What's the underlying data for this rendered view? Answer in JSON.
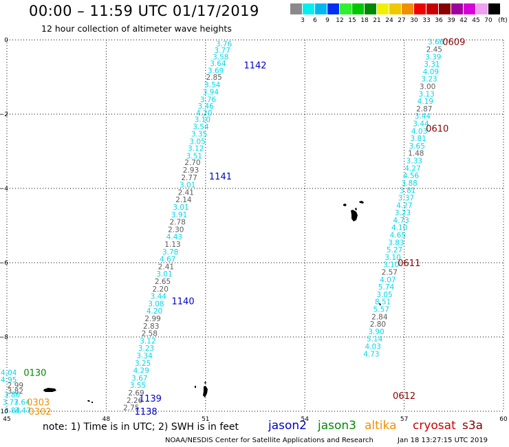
{
  "header": {
    "title": "00:00 – 11:59 UTC 01/17/2019",
    "subtitle": "12 hour collection of altimeter wave heights"
  },
  "legend": {
    "unit": "(ft)",
    "items": [
      {
        "label": "3",
        "color": "#8a8a8a"
      },
      {
        "label": "6",
        "color": "#00f0f0"
      },
      {
        "label": "9",
        "color": "#00b8f0"
      },
      {
        "label": "12",
        "color": "#0030f0"
      },
      {
        "label": "15",
        "color": "#30f030"
      },
      {
        "label": "18",
        "color": "#00c800"
      },
      {
        "label": "21",
        "color": "#008800"
      },
      {
        "label": "24",
        "color": "#f0f000"
      },
      {
        "label": "27",
        "color": "#f0c800"
      },
      {
        "label": "30",
        "color": "#f09000"
      },
      {
        "label": "33",
        "color": "#f00000"
      },
      {
        "label": "36",
        "color": "#c80000"
      },
      {
        "label": "39",
        "color": "#880000"
      },
      {
        "label": "42",
        "color": "#a000a0"
      },
      {
        "label": "45",
        "color": "#d800d8"
      },
      {
        "label": "70",
        "color": "#f0a0f0"
      },
      {
        "label": "",
        "color": "#000000"
      }
    ]
  },
  "axes": {
    "x_ticks": [
      "45",
      "48",
      "51",
      "54",
      "57",
      "60"
    ],
    "y_ticks": [
      "0",
      "−2",
      "−4",
      "−6",
      "−8",
      "−10"
    ],
    "x_range": [
      45,
      60
    ],
    "y_range": [
      0,
      -10
    ]
  },
  "colors": {
    "cyan": "#00d8e8",
    "gray": "#5a5a5a",
    "jason2": "#0000cc",
    "jason3": "#008800",
    "altika": "#f09000",
    "cryosat": "#cc0000",
    "s3a": "#880000"
  },
  "pass_labels": [
    {
      "text": "1142",
      "lon": 52.5,
      "lat": -0.68,
      "sat": "jason2"
    },
    {
      "text": "1141",
      "lon": 51.45,
      "lat": -3.67,
      "sat": "jason2"
    },
    {
      "text": "1140",
      "lon": 50.32,
      "lat": -7.03,
      "sat": "jason2"
    },
    {
      "text": "1139",
      "lon": 49.33,
      "lat": -9.65,
      "sat": "jason2"
    },
    {
      "text": "1138",
      "lon": 49.2,
      "lat": -10.0,
      "sat": "jason2"
    },
    {
      "text": "0609",
      "lon": 58.5,
      "lat": -0.05,
      "sat": "s3a"
    },
    {
      "text": "0610",
      "lon": 58.0,
      "lat": -2.38,
      "sat": "s3a"
    },
    {
      "text": "0611",
      "lon": 57.15,
      "lat": -6.0,
      "sat": "s3a"
    },
    {
      "text": "0612",
      "lon": 57.0,
      "lat": -9.57,
      "sat": "s3a"
    },
    {
      "text": "0130",
      "lon": 45.85,
      "lat": -8.95,
      "sat": "jason3"
    },
    {
      "text": "0303",
      "lon": 45.95,
      "lat": -9.75,
      "sat": "altika"
    },
    {
      "text": "0302",
      "lon": 46.0,
      "lat": -10.0,
      "sat": "altika"
    }
  ],
  "observations": [
    {
      "text": "3.76",
      "lon": 51.8,
      "lat": -0.1,
      "c": "cyan"
    },
    {
      "text": "3.77",
      "lon": 51.75,
      "lat": -0.28,
      "c": "cyan"
    },
    {
      "text": "3.58",
      "lon": 51.7,
      "lat": -0.45,
      "c": "cyan"
    },
    {
      "text": "3.64",
      "lon": 51.62,
      "lat": -0.63,
      "c": "cyan"
    },
    {
      "text": "3.69",
      "lon": 51.55,
      "lat": -0.82,
      "c": "cyan"
    },
    {
      "text": "2.85",
      "lon": 51.5,
      "lat": -1.0,
      "c": "gray"
    },
    {
      "text": "3.54",
      "lon": 51.45,
      "lat": -1.2,
      "c": "cyan"
    },
    {
      "text": "3.94",
      "lon": 51.4,
      "lat": -1.4,
      "c": "cyan"
    },
    {
      "text": "3.76",
      "lon": 51.32,
      "lat": -1.6,
      "c": "cyan"
    },
    {
      "text": "3.46",
      "lon": 51.25,
      "lat": -1.78,
      "c": "cyan"
    },
    {
      "text": "4.20",
      "lon": 51.2,
      "lat": -1.96,
      "c": "cyan"
    },
    {
      "text": "3.10",
      "lon": 51.15,
      "lat": -2.14,
      "c": "cyan"
    },
    {
      "text": "3.54",
      "lon": 51.1,
      "lat": -2.33,
      "c": "cyan"
    },
    {
      "text": "3.35",
      "lon": 51.05,
      "lat": -2.53,
      "c": "cyan"
    },
    {
      "text": "3.05",
      "lon": 51.0,
      "lat": -2.73,
      "c": "cyan"
    },
    {
      "text": "3.12",
      "lon": 50.95,
      "lat": -2.92,
      "c": "cyan"
    },
    {
      "text": "3.51",
      "lon": 50.9,
      "lat": -3.12,
      "c": "cyan"
    },
    {
      "text": "2.70",
      "lon": 50.85,
      "lat": -3.3,
      "c": "gray"
    },
    {
      "text": "2.93",
      "lon": 50.8,
      "lat": -3.5,
      "c": "gray"
    },
    {
      "text": "2.77",
      "lon": 50.75,
      "lat": -3.7,
      "c": "gray"
    },
    {
      "text": "3.01",
      "lon": 50.7,
      "lat": -3.9,
      "c": "cyan"
    },
    {
      "text": "2.41",
      "lon": 50.65,
      "lat": -4.1,
      "c": "gray"
    },
    {
      "text": "2.14",
      "lon": 50.58,
      "lat": -4.3,
      "c": "gray"
    },
    {
      "text": "3.01",
      "lon": 50.5,
      "lat": -4.5,
      "c": "cyan"
    },
    {
      "text": "3.91",
      "lon": 50.45,
      "lat": -4.7,
      "c": "cyan"
    },
    {
      "text": "2.78",
      "lon": 50.4,
      "lat": -4.9,
      "c": "gray"
    },
    {
      "text": "2.30",
      "lon": 50.35,
      "lat": -5.1,
      "c": "gray"
    },
    {
      "text": "4.43",
      "lon": 50.3,
      "lat": -5.3,
      "c": "cyan"
    },
    {
      "text": "1.13",
      "lon": 50.25,
      "lat": -5.5,
      "c": "gray"
    },
    {
      "text": "3.78",
      "lon": 50.18,
      "lat": -5.7,
      "c": "cyan"
    },
    {
      "text": "4.67",
      "lon": 50.1,
      "lat": -5.9,
      "c": "cyan"
    },
    {
      "text": "2.41",
      "lon": 50.05,
      "lat": -6.1,
      "c": "gray"
    },
    {
      "text": "3.01",
      "lon": 50.0,
      "lat": -6.3,
      "c": "cyan"
    },
    {
      "text": "2.65",
      "lon": 49.95,
      "lat": -6.5,
      "c": "gray"
    },
    {
      "text": "2.20",
      "lon": 49.88,
      "lat": -6.7,
      "c": "gray"
    },
    {
      "text": "3.44",
      "lon": 49.82,
      "lat": -6.9,
      "c": "cyan"
    },
    {
      "text": "3.08",
      "lon": 49.75,
      "lat": -7.1,
      "c": "cyan"
    },
    {
      "text": "4.20",
      "lon": 49.7,
      "lat": -7.3,
      "c": "cyan"
    },
    {
      "text": "2.99",
      "lon": 49.65,
      "lat": -7.5,
      "c": "gray"
    },
    {
      "text": "2.83",
      "lon": 49.6,
      "lat": -7.7,
      "c": "gray"
    },
    {
      "text": "2.58",
      "lon": 49.55,
      "lat": -7.9,
      "c": "gray"
    },
    {
      "text": "3.12",
      "lon": 49.5,
      "lat": -8.1,
      "c": "cyan"
    },
    {
      "text": "3.23",
      "lon": 49.45,
      "lat": -8.3,
      "c": "cyan"
    },
    {
      "text": "3.34",
      "lon": 49.4,
      "lat": -8.5,
      "c": "cyan"
    },
    {
      "text": "3.25",
      "lon": 49.35,
      "lat": -8.7,
      "c": "cyan"
    },
    {
      "text": "4.29",
      "lon": 49.3,
      "lat": -8.9,
      "c": "cyan"
    },
    {
      "text": "3.67",
      "lon": 49.25,
      "lat": -9.1,
      "c": "cyan"
    },
    {
      "text": "3.55",
      "lon": 49.2,
      "lat": -9.3,
      "c": "cyan"
    },
    {
      "text": "2.69",
      "lon": 49.15,
      "lat": -9.5,
      "c": "gray"
    },
    {
      "text": "2.26",
      "lon": 49.1,
      "lat": -9.7,
      "c": "gray"
    },
    {
      "text": "2.75",
      "lon": 49.0,
      "lat": -9.9,
      "c": "gray"
    },
    {
      "text": "3.66",
      "lon": 58.2,
      "lat": -0.05,
      "c": "cyan"
    },
    {
      "text": "2.45",
      "lon": 58.15,
      "lat": -0.25,
      "c": "gray"
    },
    {
      "text": "3.39",
      "lon": 58.12,
      "lat": -0.45,
      "c": "cyan"
    },
    {
      "text": "3.31",
      "lon": 58.08,
      "lat": -0.65,
      "c": "cyan"
    },
    {
      "text": "4.09",
      "lon": 58.05,
      "lat": -0.85,
      "c": "cyan"
    },
    {
      "text": "3.23",
      "lon": 58.0,
      "lat": -1.05,
      "c": "cyan"
    },
    {
      "text": "3.00",
      "lon": 57.95,
      "lat": -1.25,
      "c": "gray"
    },
    {
      "text": "3.13",
      "lon": 57.92,
      "lat": -1.45,
      "c": "cyan"
    },
    {
      "text": "4.19",
      "lon": 57.88,
      "lat": -1.65,
      "c": "cyan"
    },
    {
      "text": "2.87",
      "lon": 57.85,
      "lat": -1.85,
      "c": "gray"
    },
    {
      "text": "3.44",
      "lon": 57.8,
      "lat": -2.05,
      "c": "cyan"
    },
    {
      "text": "3.44",
      "lon": 57.75,
      "lat": -2.25,
      "c": "cyan"
    },
    {
      "text": "4.03",
      "lon": 57.7,
      "lat": -2.45,
      "c": "cyan"
    },
    {
      "text": "3.81",
      "lon": 57.67,
      "lat": -2.65,
      "c": "cyan"
    },
    {
      "text": "3.65",
      "lon": 57.63,
      "lat": -2.85,
      "c": "cyan"
    },
    {
      "text": "1.48",
      "lon": 57.6,
      "lat": -3.05,
      "c": "gray"
    },
    {
      "text": "3.33",
      "lon": 57.55,
      "lat": -3.25,
      "c": "cyan"
    },
    {
      "text": "4.27",
      "lon": 57.5,
      "lat": -3.45,
      "c": "cyan"
    },
    {
      "text": "4.56",
      "lon": 57.45,
      "lat": -3.65,
      "c": "cyan"
    },
    {
      "text": "3.88",
      "lon": 57.4,
      "lat": -3.85,
      "c": "cyan"
    },
    {
      "text": "3.81",
      "lon": 57.35,
      "lat": -4.05,
      "c": "cyan"
    },
    {
      "text": "3.37",
      "lon": 57.3,
      "lat": -4.25,
      "c": "cyan"
    },
    {
      "text": "4.27",
      "lon": 57.25,
      "lat": -4.45,
      "c": "cyan"
    },
    {
      "text": "3.23",
      "lon": 57.2,
      "lat": -4.65,
      "c": "cyan"
    },
    {
      "text": "4.73",
      "lon": 57.15,
      "lat": -4.85,
      "c": "cyan"
    },
    {
      "text": "4.10",
      "lon": 57.1,
      "lat": -5.05,
      "c": "cyan"
    },
    {
      "text": "4.65",
      "lon": 57.05,
      "lat": -5.25,
      "c": "cyan"
    },
    {
      "text": "3.83",
      "lon": 57.0,
      "lat": -5.45,
      "c": "cyan"
    },
    {
      "text": "5.27",
      "lon": 56.95,
      "lat": -5.65,
      "c": "cyan"
    },
    {
      "text": "3.10",
      "lon": 56.9,
      "lat": -5.85,
      "c": "cyan"
    },
    {
      "text": "3.10",
      "lon": 56.85,
      "lat": -6.05,
      "c": "cyan"
    },
    {
      "text": "2.57",
      "lon": 56.8,
      "lat": -6.25,
      "c": "gray"
    },
    {
      "text": "4.07",
      "lon": 56.75,
      "lat": -6.45,
      "c": "cyan"
    },
    {
      "text": "5.74",
      "lon": 56.7,
      "lat": -6.65,
      "c": "cyan"
    },
    {
      "text": "3.05",
      "lon": 56.65,
      "lat": -6.85,
      "c": "cyan"
    },
    {
      "text": "8.51",
      "lon": 56.6,
      "lat": -7.05,
      "c": "cyan"
    },
    {
      "text": "5.57",
      "lon": 56.55,
      "lat": -7.25,
      "c": "cyan"
    },
    {
      "text": "2.84",
      "lon": 56.5,
      "lat": -7.45,
      "c": "gray"
    },
    {
      "text": "2.80",
      "lon": 56.45,
      "lat": -7.65,
      "c": "gray"
    },
    {
      "text": "3.90",
      "lon": 56.4,
      "lat": -7.85,
      "c": "cyan"
    },
    {
      "text": "5.14",
      "lon": 56.35,
      "lat": -8.05,
      "c": "cyan"
    },
    {
      "text": "4.03",
      "lon": 56.3,
      "lat": -8.25,
      "c": "cyan"
    },
    {
      "text": "4.73",
      "lon": 56.25,
      "lat": -8.45,
      "c": "cyan"
    },
    {
      "text": "4.04",
      "lon": 45.3,
      "lat": -8.95,
      "c": "cyan"
    },
    {
      "text": "4.95",
      "lon": 45.3,
      "lat": -9.15,
      "c": "cyan"
    },
    {
      "text": "2.99",
      "lon": 45.5,
      "lat": -9.3,
      "c": "gray"
    },
    {
      "text": "3.82",
      "lon": 45.5,
      "lat": -9.45,
      "c": "gray"
    },
    {
      "text": "3.86",
      "lon": 45.4,
      "lat": -9.55,
      "c": "cyan"
    },
    {
      "text": "3.64",
      "lon": 45.7,
      "lat": -9.75,
      "c": "cyan"
    },
    {
      "text": "3.77",
      "lon": 45.35,
      "lat": -9.75,
      "c": "cyan"
    },
    {
      "text": "3.84",
      "lon": 45.4,
      "lat": -9.97,
      "c": "cyan"
    },
    {
      "text": "3.47",
      "lon": 45.72,
      "lat": -9.97,
      "c": "cyan"
    }
  ],
  "footer": {
    "note": "note:  1) Time is in UTC;  2) SWH is in feet",
    "satellites": [
      {
        "name": "jason2",
        "color": "#0000cc"
      },
      {
        "name": "jason3",
        "color": "#008800"
      },
      {
        "name": "altika",
        "color": "#f09000"
      },
      {
        "name": "cryosat",
        "color": "#cc0000"
      },
      {
        "name": "s3a",
        "color": "#880000"
      }
    ],
    "credit": "NOAA/NESDIS Center for Satellite Applications and Research",
    "timestamp": "Jan 18 13:27:15 UTC 2019"
  }
}
